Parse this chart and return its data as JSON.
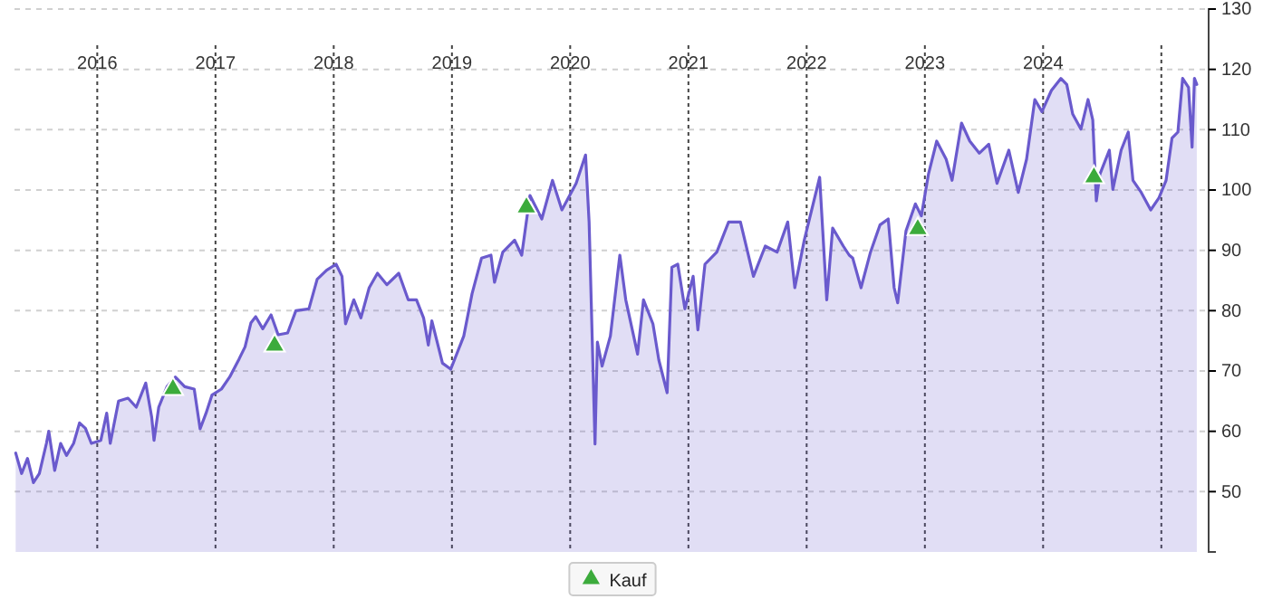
{
  "chart_data": {
    "type": "area",
    "xlim": [
      2015.3,
      2025.4
    ],
    "xticks": [
      2016,
      2017,
      2018,
      2019,
      2020,
      2021,
      2022,
      2023,
      2024,
      {
        "value": 2025,
        "label": null
      }
    ],
    "ylim": [
      40,
      130
    ],
    "yticks": [
      50,
      60,
      70,
      80,
      90,
      100,
      110,
      120,
      130
    ],
    "grid": true,
    "legend": "bottom",
    "series": [
      {
        "color": "#6a5acd",
        "x": [
          2015.31,
          2015.36,
          2015.41,
          2015.46,
          2015.51,
          2015.57,
          2015.59,
          2015.64,
          2015.69,
          2015.74,
          2015.8,
          2015.85,
          2015.9,
          2015.95,
          2016.03,
          2016.08,
          2016.11,
          2016.18,
          2016.26,
          2016.33,
          2016.41,
          2016.46,
          2016.48,
          2016.52,
          2016.59,
          2016.66,
          2016.74,
          2016.82,
          2016.87,
          2016.92,
          2016.97,
          2017.05,
          2017.12,
          2017.2,
          2017.25,
          2017.3,
          2017.34,
          2017.4,
          2017.47,
          2017.53,
          2017.61,
          2017.68,
          2017.79,
          2017.86,
          2017.94,
          2018.02,
          2018.07,
          2018.1,
          2018.17,
          2018.23,
          2018.3,
          2018.37,
          2018.45,
          2018.55,
          2018.63,
          2018.7,
          2018.76,
          2018.8,
          2018.83,
          2018.92,
          2018.99,
          2019.1,
          2019.17,
          2019.25,
          2019.33,
          2019.36,
          2019.43,
          2019.53,
          2019.59,
          2019.66,
          2019.76,
          2019.85,
          2019.93,
          2020.05,
          2020.13,
          2020.16,
          2020.21,
          2020.23,
          2020.27,
          2020.34,
          2020.42,
          2020.47,
          2020.57,
          2020.62,
          2020.7,
          2020.75,
          2020.82,
          2020.86,
          2020.91,
          2020.97,
          2021.04,
          2021.08,
          2021.14,
          2021.24,
          2021.34,
          2021.44,
          2021.55,
          2021.65,
          2021.75,
          2021.84,
          2021.9,
          2021.98,
          2022.11,
          2022.17,
          2022.22,
          2022.31,
          2022.36,
          2022.39,
          2022.46,
          2022.54,
          2022.62,
          2022.69,
          2022.74,
          2022.77,
          2022.84,
          2022.92,
          2022.97,
          2023.03,
          2023.1,
          2023.18,
          2023.23,
          2023.31,
          2023.38,
          2023.46,
          2023.54,
          2023.61,
          2023.71,
          2023.79,
          2023.86,
          2023.93,
          2023.99,
          2024.07,
          2024.15,
          2024.2,
          2024.25,
          2024.32,
          2024.38,
          2024.42,
          2024.45,
          2024.48,
          2024.56,
          2024.59,
          2024.66,
          2024.72,
          2024.76,
          2024.83,
          2024.91,
          2024.98,
          2025.04,
          2025.09,
          2025.14,
          2025.18,
          2025.23,
          2025.26,
          2025.28,
          2025.3
        ],
        "values": [
          56.4,
          53,
          55.5,
          51.5,
          53,
          58,
          60,
          53.5,
          58,
          56,
          58,
          61.4,
          60.5,
          58,
          58.5,
          63,
          58,
          65,
          65.5,
          64,
          68,
          62.4,
          58.5,
          64,
          67.4,
          69,
          67.4,
          67,
          60.4,
          63,
          66,
          67,
          69,
          72,
          74,
          78,
          79,
          77,
          79.3,
          76,
          76.3,
          80,
          80.3,
          85.2,
          86.7,
          87.7,
          85.7,
          77.8,
          81.8,
          78.8,
          83.8,
          86.2,
          84.3,
          86.2,
          81.8,
          81.8,
          78.8,
          74.3,
          78.3,
          71.3,
          70.3,
          75.8,
          82.8,
          88.7,
          89.2,
          84.7,
          89.7,
          91.7,
          89.2,
          99.1,
          95.2,
          101.6,
          96.7,
          101.1,
          105.8,
          94.7,
          57.9,
          74.8,
          70.8,
          75.8,
          89.2,
          81.8,
          72.8,
          81.8,
          77.8,
          71.8,
          66.4,
          87.2,
          87.7,
          80.3,
          85.7,
          76.8,
          87.7,
          89.7,
          94.7,
          94.7,
          85.7,
          90.7,
          89.7,
          94.7,
          83.8,
          91.7,
          102.1,
          81.8,
          93.7,
          90.7,
          89.2,
          88.7,
          83.8,
          89.7,
          94.2,
          95.2,
          83.8,
          81.3,
          93.2,
          97.7,
          95.7,
          102.6,
          108.1,
          105.1,
          101.6,
          111.1,
          108.1,
          106.1,
          107.6,
          101.1,
          106.6,
          99.6,
          105.1,
          115,
          113,
          116.5,
          118.5,
          117.5,
          112.6,
          110.1,
          115,
          111.6,
          98.2,
          102.6,
          106.6,
          100.1,
          106.6,
          109.6,
          101.6,
          99.6,
          96.7,
          98.7,
          101.6,
          108.6,
          109.6,
          118.5,
          117,
          107.1,
          118.5,
          117.5
        ]
      },
      {
        "type": "scatter",
        "name": "Kauf",
        "color": "#3cab3c",
        "marker": "triangle",
        "x": [
          2016.64,
          2017.5,
          2019.63,
          2022.94,
          2024.43
        ],
        "values": [
          67,
          74.2,
          97.1,
          93.5,
          102.1
        ]
      }
    ]
  }
}
